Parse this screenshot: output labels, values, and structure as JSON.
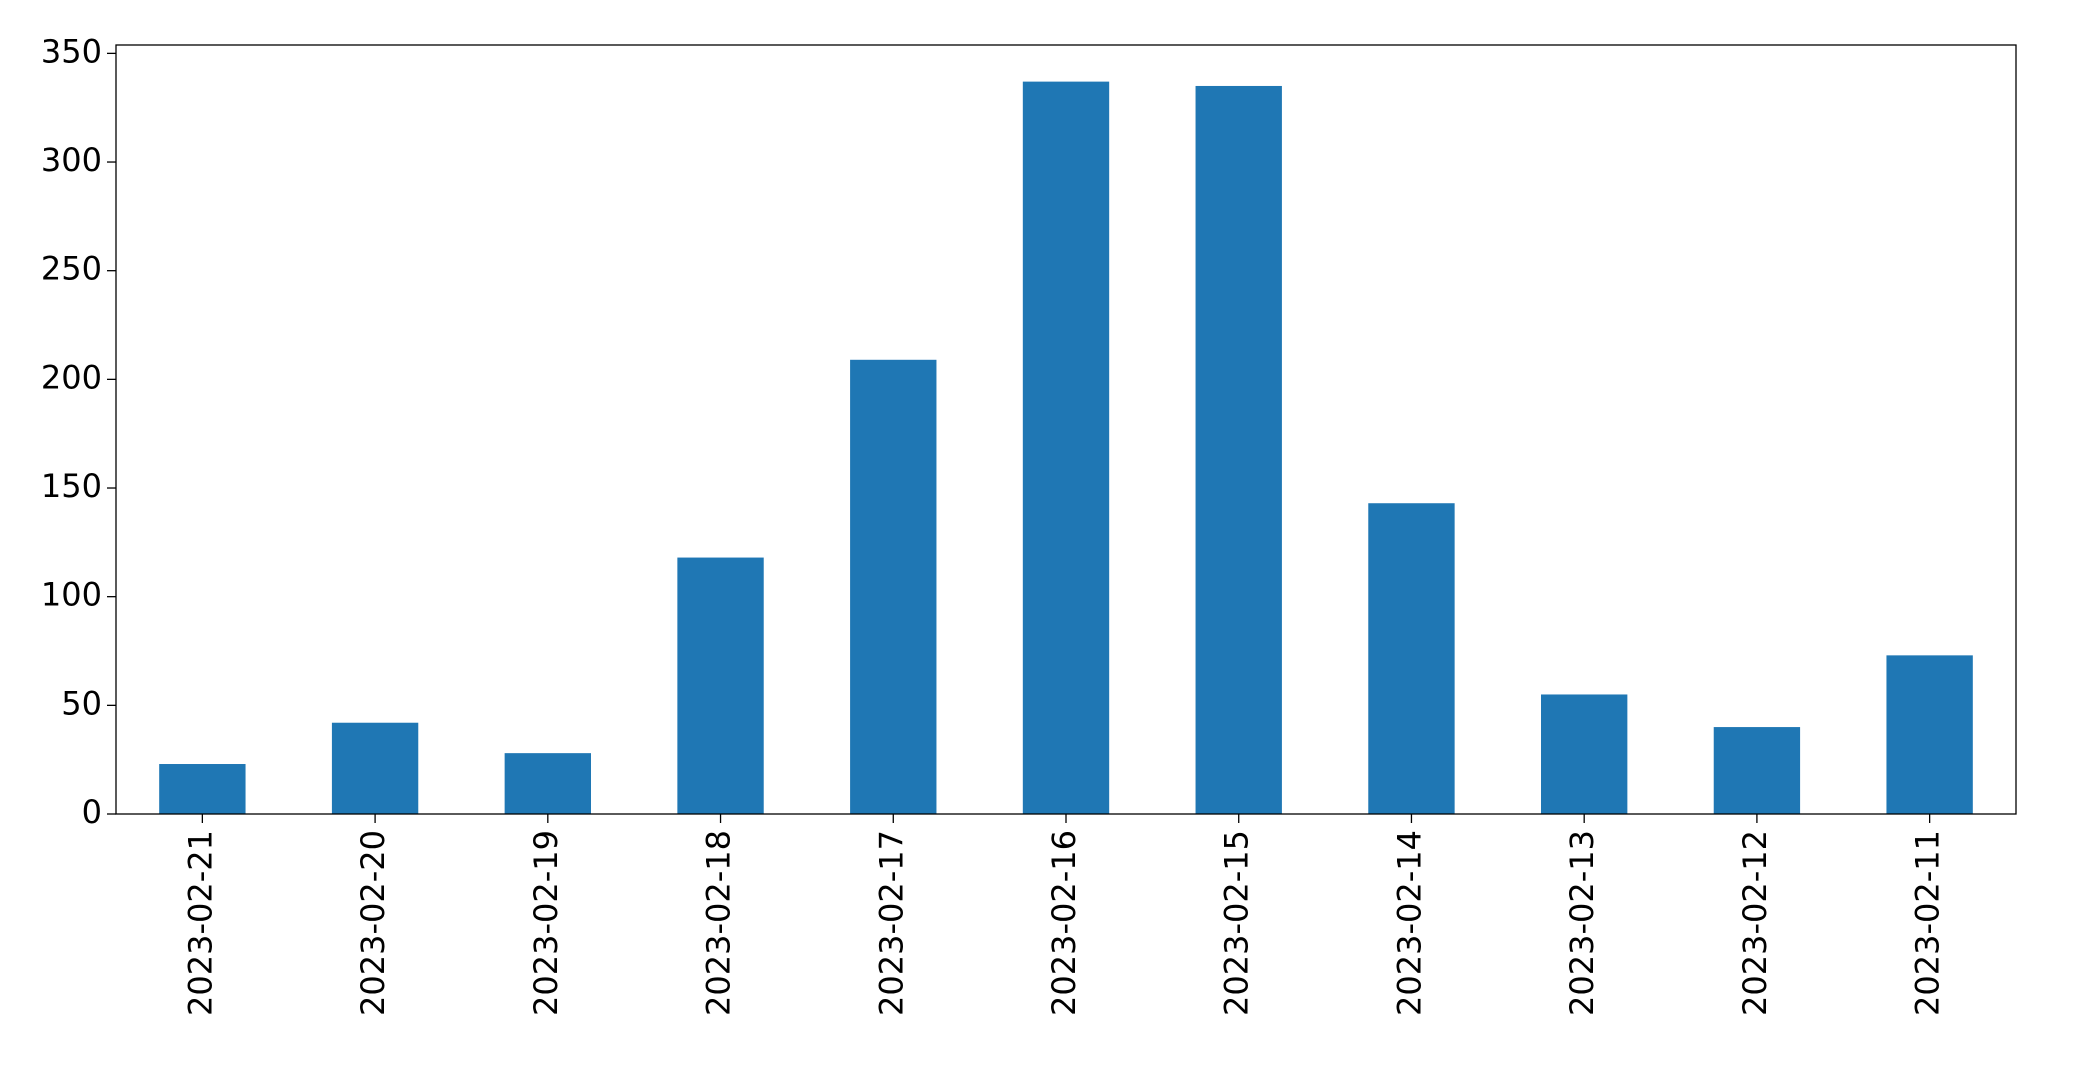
{
  "chart_data": {
    "type": "bar",
    "categories": [
      "2023-02-21",
      "2023-02-20",
      "2023-02-19",
      "2023-02-18",
      "2023-02-17",
      "2023-02-16",
      "2023-02-15",
      "2023-02-14",
      "2023-02-13",
      "2023-02-12",
      "2023-02-11"
    ],
    "values": [
      23,
      42,
      28,
      118,
      209,
      337,
      335,
      143,
      55,
      40,
      73
    ],
    "color": "#1f77b4",
    "ylim": [
      0,
      353.85
    ],
    "yticks": [
      0,
      50,
      100,
      150,
      200,
      250,
      300,
      350
    ],
    "grid": false
  }
}
